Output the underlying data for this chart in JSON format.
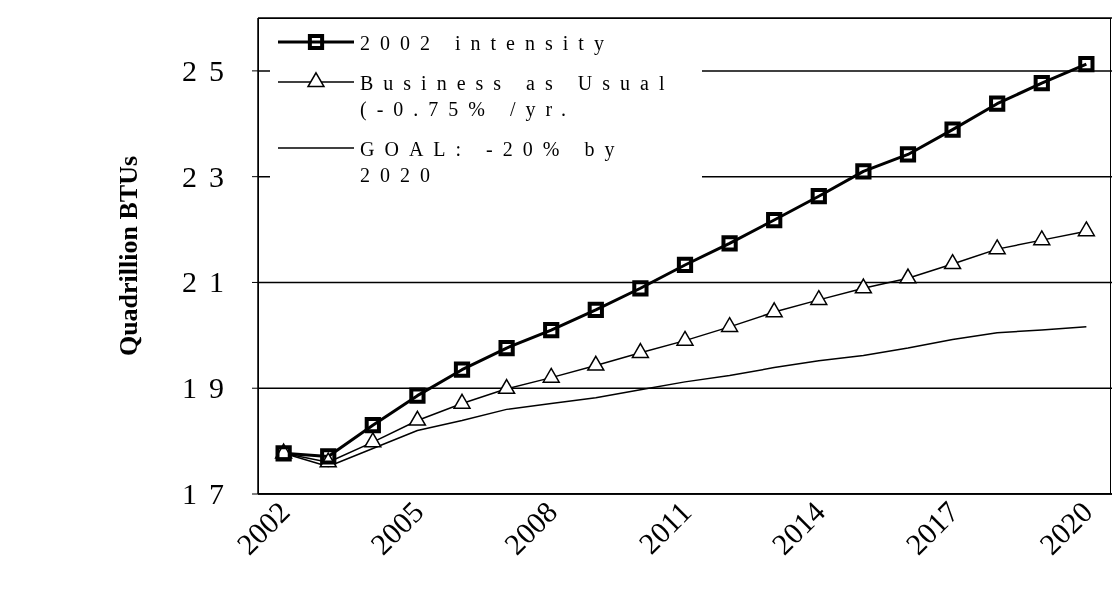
{
  "chart_data": {
    "type": "line",
    "ylabel": "Quadrillion BTUs",
    "categories": [
      "2002",
      null,
      null,
      "2005",
      null,
      null,
      "2008",
      null,
      null,
      "2011",
      null,
      null,
      "2014",
      null,
      null,
      "2017",
      null,
      null,
      "2020"
    ],
    "series": [
      {
        "name": "2002 intensity",
        "color": "#000000",
        "marker": "square",
        "values": [
          17.77,
          17.71,
          18.3,
          18.86,
          19.35,
          19.76,
          20.1,
          20.48,
          20.89,
          21.33,
          21.74,
          22.18,
          22.63,
          23.1,
          23.42,
          23.89,
          24.38,
          24.77,
          25.13
        ]
      },
      {
        "name": "Business as Usual (-0.75% /yr.",
        "color": "#000000",
        "marker": "triangle",
        "values": [
          17.77,
          17.6,
          17.98,
          18.39,
          18.71,
          18.99,
          19.2,
          19.43,
          19.67,
          19.9,
          20.16,
          20.44,
          20.67,
          20.89,
          21.08,
          21.35,
          21.63,
          21.8,
          21.97
        ]
      },
      {
        "name": "GOAL: -20% by 2020",
        "color": "#000000",
        "marker": "none",
        "values": [
          17.77,
          17.52,
          17.86,
          18.2,
          18.39,
          18.6,
          18.71,
          18.82,
          18.97,
          19.12,
          19.24,
          19.39,
          19.52,
          19.62,
          19.76,
          19.92,
          20.05,
          20.1,
          20.16
        ]
      }
    ],
    "ylim": [
      17,
      26
    ],
    "yticks": [
      17,
      19,
      21,
      23,
      25
    ],
    "grid": "y",
    "legend": "top left",
    "line_style": "solid"
  }
}
